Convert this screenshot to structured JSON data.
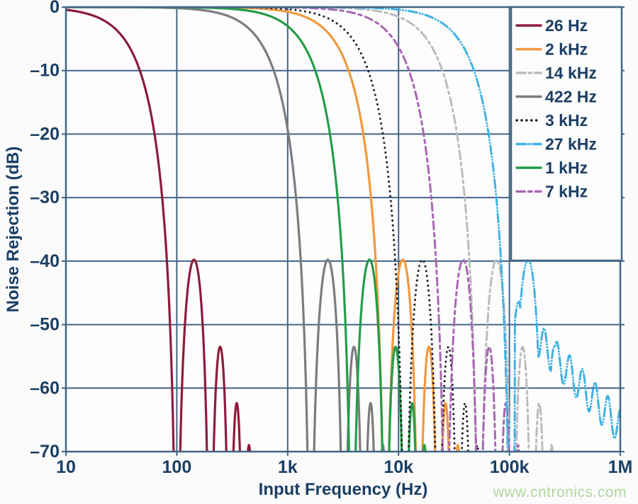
{
  "chart_data": {
    "type": "line",
    "title": "",
    "xlabel": "Input Frequency (Hz)",
    "ylabel": "Noise Rejection (dB)",
    "x_scale": "log",
    "x_range_hz": [
      10,
      1000000
    ],
    "y_range_db": [
      -70,
      0
    ],
    "grid": true,
    "legend_position": "top-right",
    "model": "sinc3 digital-filter noise rejection: attenuation_dB(f) = 60*log10(|sin(pi*f/fn)/(pi*f/fn)|), fn = first notch frequency; side-lobe peaks at about -40, -53, -62, -69 dB",
    "x_ticks": [
      {
        "value": 10,
        "label": "10"
      },
      {
        "value": 100,
        "label": "100"
      },
      {
        "value": 1000,
        "label": "1k"
      },
      {
        "value": 10000,
        "label": "10k"
      },
      {
        "value": 100000,
        "label": "100k"
      },
      {
        "value": 1000000,
        "label": "1M"
      }
    ],
    "y_ticks": [
      {
        "value": 0,
        "label": "0"
      },
      {
        "value": -10,
        "label": "–10"
      },
      {
        "value": -20,
        "label": "–20"
      },
      {
        "value": -30,
        "label": "–30"
      },
      {
        "value": -40,
        "label": "–40"
      },
      {
        "value": -50,
        "label": "–50"
      },
      {
        "value": -60,
        "label": "–60"
      },
      {
        "value": -70,
        "label": "–70"
      }
    ],
    "series": [
      {
        "label": "26 Hz",
        "color": "#8c1c3a",
        "dash": "solid",
        "f3db_hz": 26,
        "first_notch_hz": 100
      },
      {
        "label": "2 kHz",
        "color": "#f0993e",
        "dash": "solid",
        "f3db_hz": 2000,
        "first_notch_hz": 7642
      },
      {
        "label": "14 kHz",
        "color": "#bcbcbe",
        "dash": "dash-dot",
        "f3db_hz": 14000,
        "first_notch_hz": 53497
      },
      {
        "label": "422 Hz",
        "color": "#7c7c7e",
        "dash": "solid",
        "f3db_hz": 422,
        "first_notch_hz": 1612
      },
      {
        "label": "3 kHz",
        "color": "#1e1e26",
        "dash": "dotted",
        "f3db_hz": 3000,
        "first_notch_hz": 11463
      },
      {
        "label": "27 kHz",
        "color": "#3fb2e3",
        "dash": "dash-dot-dot",
        "f3db_hz": 27000,
        "first_notch_hz": 103173,
        "tail": {
          "apply_from_log10": 5.05,
          "start_log10": 5.4,
          "start_db": -55,
          "slope_db_per_decade": -18.5,
          "ripple_db": 2.8,
          "ripple_period_decades": 0.115
        }
      },
      {
        "label": "1 kHz",
        "color": "#259c48",
        "dash": "solid",
        "f3db_hz": 1000,
        "first_notch_hz": 3821
      },
      {
        "label": "7 kHz",
        "color": "#a767b2",
        "dash": "dashed",
        "f3db_hz": 7000,
        "first_notch_hz": 26748
      }
    ],
    "colors": {
      "text_navy": "#1b3e63",
      "grid": "#426585",
      "plot_background": "#fdfdfe",
      "watermark_green": "#b2d89e"
    },
    "watermark": "www.cntronics.com"
  }
}
